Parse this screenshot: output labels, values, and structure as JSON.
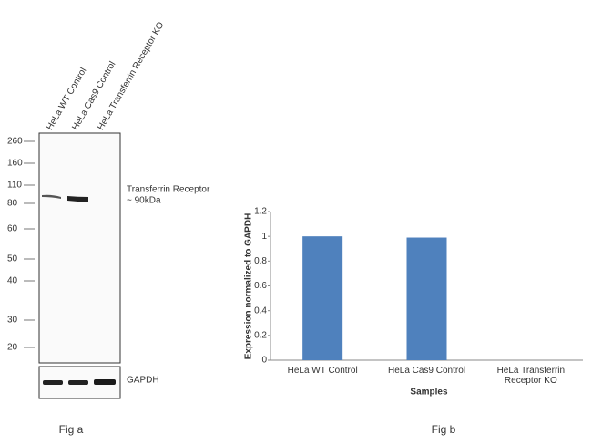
{
  "blot": {
    "lanes": [
      "HeLa WT Control",
      "HeLa Cas9 Control",
      "HeLa Transferrin Receptor KO"
    ],
    "markers": [
      260,
      160,
      110,
      80,
      60,
      50,
      40,
      30,
      20
    ],
    "band_label": [
      "Transferrin Receptor",
      "~ 90kDa"
    ],
    "control_label": "GAPDH",
    "caption": "Fig a"
  },
  "chart_data": {
    "type": "bar",
    "categories": [
      "HeLa WT Control",
      "HeLa Cas9 Control",
      "HeLa Transferrin Receptor KO"
    ],
    "values": [
      1,
      0.99,
      0
    ],
    "color": "#4f81bd",
    "ylim": [
      0,
      1.2
    ],
    "yticks": [
      0,
      0.2,
      0.4,
      0.6,
      0.8,
      1,
      1.2
    ],
    "xlabel": "Samples",
    "ylabel": "Expression  normalized to GAPDH",
    "caption": "Fig b"
  }
}
